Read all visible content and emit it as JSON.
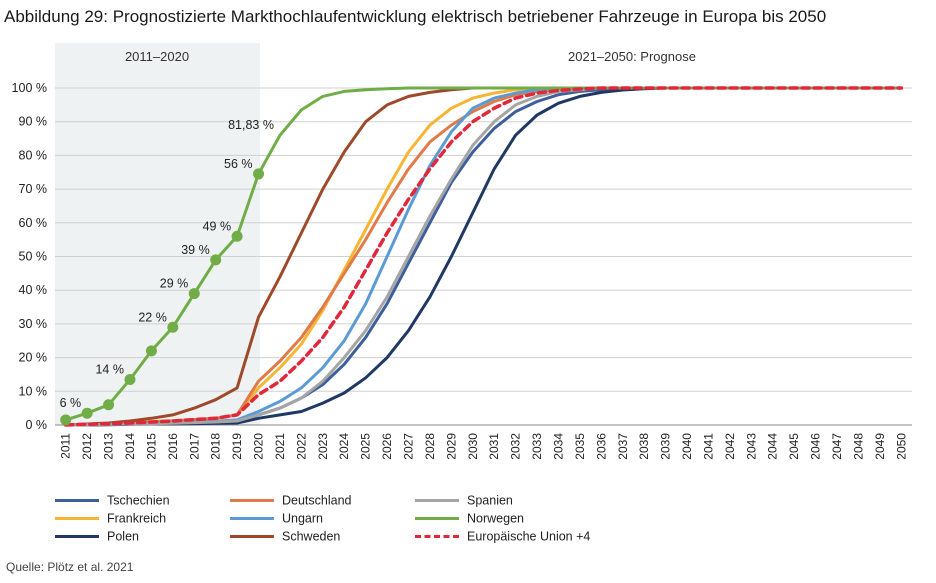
{
  "title": "Abbildung 29: Prognostizierte Markthochlaufentwicklung elektrisch betriebener Fahrzeuge in Europa bis 2050",
  "source": "Quelle: Plötz et al. 2021",
  "period_labels": {
    "history": "2011–2020",
    "forecast": "2021–2050: Prognose"
  },
  "chart_data": {
    "type": "line",
    "title": "Abbildung 29: Prognostizierte Markthochlaufentwicklung elektrisch betriebener Fahrzeuge in Europa bis 2050",
    "xlabel": "",
    "ylabel": "",
    "ylim": [
      0,
      100
    ],
    "yticks": [
      "0 %",
      "10 %",
      "20 %",
      "30 %",
      "40 %",
      "50 %",
      "60 %",
      "70 %",
      "80 %",
      "90 %",
      "100 %"
    ],
    "grid": true,
    "legend_position": "bottom",
    "x": [
      2011,
      2012,
      2013,
      2014,
      2015,
      2016,
      2017,
      2018,
      2019,
      2020,
      2021,
      2022,
      2023,
      2024,
      2025,
      2026,
      2027,
      2028,
      2029,
      2030,
      2031,
      2032,
      2033,
      2034,
      2035,
      2036,
      2037,
      2038,
      2039,
      2040,
      2041,
      2042,
      2043,
      2044,
      2045,
      2046,
      2047,
      2048,
      2049,
      2050
    ],
    "series": [
      {
        "name": "Tschechien",
        "color": "#3d5f9b",
        "dashed": false,
        "values": [
          0,
          0,
          0.2,
          0.3,
          0.4,
          0.5,
          0.7,
          0.9,
          1,
          3,
          5,
          8,
          12,
          18,
          26,
          36,
          48,
          60,
          72,
          81,
          88,
          93,
          96,
          98,
          99,
          99.5,
          100,
          100,
          100,
          100,
          100,
          100,
          100,
          100,
          100,
          100,
          100,
          100,
          100,
          100
        ]
      },
      {
        "name": "Frankreich",
        "color": "#f8b534",
        "dashed": false,
        "values": [
          0,
          0.2,
          0.5,
          0.8,
          1,
          1.3,
          1.6,
          2,
          3,
          11,
          17,
          24,
          34,
          46,
          58,
          70,
          81,
          89,
          94,
          97,
          98.5,
          99.5,
          100,
          100,
          100,
          100,
          100,
          100,
          100,
          100,
          100,
          100,
          100,
          100,
          100,
          100,
          100,
          100,
          100,
          100
        ]
      },
      {
        "name": "Polen",
        "color": "#1f3864",
        "dashed": false,
        "values": [
          0,
          0,
          0.1,
          0.2,
          0.3,
          0.3,
          0.4,
          0.5,
          0.6,
          2,
          3,
          4,
          6.5,
          9.5,
          14,
          20,
          28,
          38,
          50,
          63,
          76,
          86,
          92,
          95.5,
          97.5,
          98.7,
          99.4,
          99.8,
          100,
          100,
          100,
          100,
          100,
          100,
          100,
          100,
          100,
          100,
          100,
          100
        ]
      },
      {
        "name": "Deutschland",
        "color": "#e07b49",
        "dashed": false,
        "values": [
          0,
          0.2,
          0.4,
          0.6,
          0.9,
          1.2,
          1.6,
          2,
          3,
          13,
          19,
          26,
          35,
          45,
          55,
          66,
          76,
          84,
          89,
          93,
          96,
          98,
          99,
          99.5,
          100,
          100,
          100,
          100,
          100,
          100,
          100,
          100,
          100,
          100,
          100,
          100,
          100,
          100,
          100,
          100
        ]
      },
      {
        "name": "Ungarn",
        "color": "#5b9bd5",
        "dashed": false,
        "values": [
          0,
          0.1,
          0.2,
          0.3,
          0.5,
          0.7,
          0.9,
          1.1,
          1.5,
          4,
          7,
          11,
          17,
          25,
          36,
          50,
          64,
          77,
          87,
          94,
          97,
          98.5,
          99.5,
          100,
          100,
          100,
          100,
          100,
          100,
          100,
          100,
          100,
          100,
          100,
          100,
          100,
          100,
          100,
          100,
          100
        ]
      },
      {
        "name": "Schweden",
        "color": "#9e4a2a",
        "dashed": false,
        "values": [
          0,
          0.3,
          0.6,
          1.2,
          2,
          3,
          5,
          7.5,
          11,
          32,
          44,
          57,
          70,
          81,
          90,
          95,
          97.5,
          98.7,
          99.5,
          100,
          100,
          100,
          100,
          100,
          100,
          100,
          100,
          100,
          100,
          100,
          100,
          100,
          100,
          100,
          100,
          100,
          100,
          100,
          100,
          100
        ]
      },
      {
        "name": "Spanien",
        "color": "#a5a5a5",
        "dashed": false,
        "values": [
          0,
          0.1,
          0.2,
          0.3,
          0.4,
          0.5,
          0.7,
          0.9,
          1.2,
          3,
          5,
          8,
          13,
          20,
          28,
          38,
          50,
          62,
          73,
          83,
          90,
          95,
          97.5,
          99,
          99.5,
          100,
          100,
          100,
          100,
          100,
          100,
          100,
          100,
          100,
          100,
          100,
          100,
          100,
          100,
          100
        ]
      },
      {
        "name": "Norwegen",
        "color": "#70ad47",
        "dashed": false,
        "values": [
          1.5,
          3.5,
          6,
          13.5,
          22,
          29,
          39,
          49,
          56,
          74.5,
          86,
          93.5,
          97.5,
          99,
          99.5,
          99.8,
          100,
          100,
          100,
          100,
          100,
          100,
          100,
          100,
          100,
          100,
          100,
          100,
          100,
          100,
          100,
          100,
          100,
          100,
          100,
          100,
          100,
          100,
          100,
          100
        ],
        "marker_until": 2020
      },
      {
        "name": "Europäische Union +4",
        "color": "#e0283a",
        "dashed": true,
        "values": [
          0,
          0.2,
          0.4,
          0.6,
          0.9,
          1.2,
          1.6,
          2,
          3,
          9,
          13,
          19,
          26,
          35,
          46,
          57,
          67,
          76,
          84,
          90,
          94,
          97,
          98.5,
          99.3,
          99.7,
          100,
          100,
          100,
          100,
          100,
          100,
          100,
          100,
          100,
          100,
          100,
          100,
          100,
          100,
          100
        ]
      }
    ],
    "annotations": [
      {
        "x": 2012,
        "text": "6 %"
      },
      {
        "x": 2014,
        "text": "14 %"
      },
      {
        "x": 2016,
        "text": "22 %"
      },
      {
        "x": 2017,
        "text": "29 %"
      },
      {
        "x": 2018,
        "text": "39 %"
      },
      {
        "x": 2019,
        "text": "49 %"
      },
      {
        "x": 2020,
        "text": "56 %"
      },
      {
        "x": 2021,
        "text": "81,83 %"
      }
    ]
  }
}
